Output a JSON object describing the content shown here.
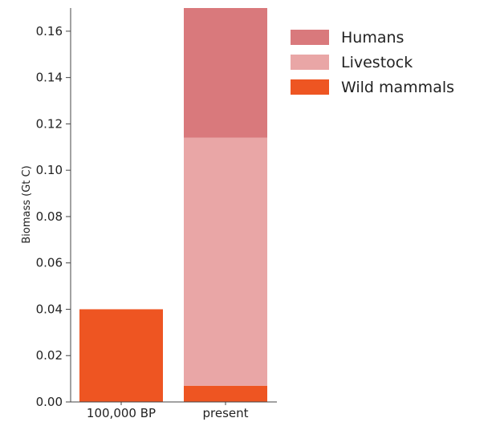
{
  "chart_data": {
    "type": "bar",
    "stacked": true,
    "categories": [
      "100,000 BP",
      "present"
    ],
    "series": [
      {
        "name": "Wild mammals",
        "values": [
          0.04,
          0.007
        ],
        "color": "#ee5522"
      },
      {
        "name": "Livestock",
        "values": [
          0,
          0.107
        ],
        "color": "#e9a6a6"
      },
      {
        "name": "Humans",
        "values": [
          0,
          0.056
        ],
        "color": "#d9797c"
      }
    ],
    "ylabel": "Biomass (Gt C)",
    "ylim": [
      0,
      0.17
    ],
    "yticks": [
      "0.00",
      "0.02",
      "0.04",
      "0.06",
      "0.08",
      "0.10",
      "0.12",
      "0.14",
      "0.16"
    ],
    "grid": false,
    "legend": {
      "position": "top-right",
      "order": [
        "Humans",
        "Livestock",
        "Wild mammals"
      ]
    }
  }
}
